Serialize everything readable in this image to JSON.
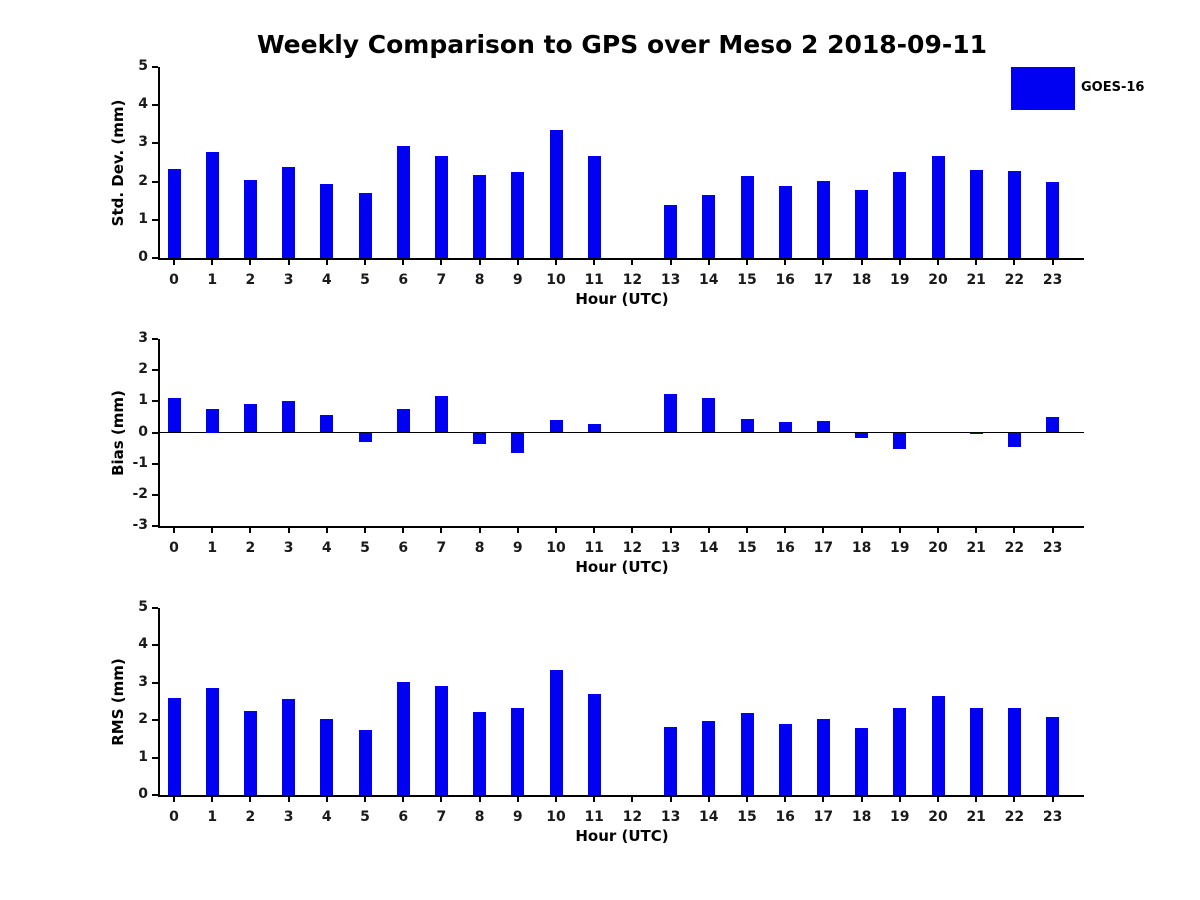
{
  "title": "Weekly Comparison to GPS over Meso 2 2018-09-11",
  "legend": {
    "label": "GOES-16",
    "color": "#0000f2",
    "position": "top-right"
  },
  "colors": {
    "bar": "#0000f2",
    "axis": "#000000",
    "text": "#000000",
    "background": "#ffffff"
  },
  "chart_data": [
    {
      "type": "bar",
      "id": "std-dev",
      "ylabel": "Std. Dev. (mm)",
      "xlabel": "Hour (UTC)",
      "ylim": [
        0,
        5
      ],
      "yticks": [
        0,
        1,
        2,
        3,
        4,
        5
      ],
      "grid": false,
      "legend_entries": [
        "GOES-16"
      ],
      "categories": [
        "0",
        "1",
        "2",
        "3",
        "4",
        "5",
        "6",
        "7",
        "8",
        "9",
        "10",
        "11",
        "12",
        "13",
        "14",
        "15",
        "16",
        "17",
        "18",
        "19",
        "20",
        "21",
        "22",
        "23"
      ],
      "values": [
        2.33,
        2.78,
        2.05,
        2.37,
        1.95,
        1.71,
        2.93,
        2.67,
        2.18,
        2.24,
        3.36,
        2.67,
        null,
        1.4,
        1.66,
        2.14,
        1.89,
        2.01,
        1.79,
        2.24,
        2.66,
        2.31,
        2.28,
        2.0
      ]
    },
    {
      "type": "bar",
      "id": "bias",
      "ylabel": "Bias (mm)",
      "xlabel": "Hour (UTC)",
      "ylim": [
        -3,
        3
      ],
      "yticks": [
        -3,
        -2,
        -1,
        0,
        1,
        2,
        3
      ],
      "grid": false,
      "zero_line": true,
      "categories": [
        "0",
        "1",
        "2",
        "3",
        "4",
        "5",
        "6",
        "7",
        "8",
        "9",
        "10",
        "11",
        "12",
        "13",
        "14",
        "15",
        "16",
        "17",
        "18",
        "19",
        "20",
        "21",
        "22",
        "23"
      ],
      "values": [
        1.12,
        0.75,
        0.9,
        1.0,
        0.57,
        -0.3,
        0.77,
        1.16,
        -0.37,
        -0.65,
        0.39,
        0.28,
        null,
        1.22,
        1.1,
        0.42,
        0.33,
        0.38,
        -0.18,
        -0.52,
        0.0,
        -0.05,
        -0.47,
        0.5
      ]
    },
    {
      "type": "bar",
      "id": "rms",
      "ylabel": "RMS (mm)",
      "xlabel": "Hour (UTC)",
      "ylim": [
        0,
        5
      ],
      "yticks": [
        0,
        1,
        2,
        3,
        4,
        5
      ],
      "grid": false,
      "categories": [
        "0",
        "1",
        "2",
        "3",
        "4",
        "5",
        "6",
        "7",
        "8",
        "9",
        "10",
        "11",
        "12",
        "13",
        "14",
        "15",
        "16",
        "17",
        "18",
        "19",
        "20",
        "21",
        "22",
        "23"
      ],
      "values": [
        2.59,
        2.85,
        2.24,
        2.56,
        2.03,
        1.73,
        3.01,
        2.91,
        2.21,
        2.32,
        3.35,
        2.7,
        null,
        1.83,
        1.99,
        2.18,
        1.89,
        2.04,
        1.78,
        2.32,
        2.65,
        2.33,
        2.33,
        2.08
      ]
    }
  ]
}
